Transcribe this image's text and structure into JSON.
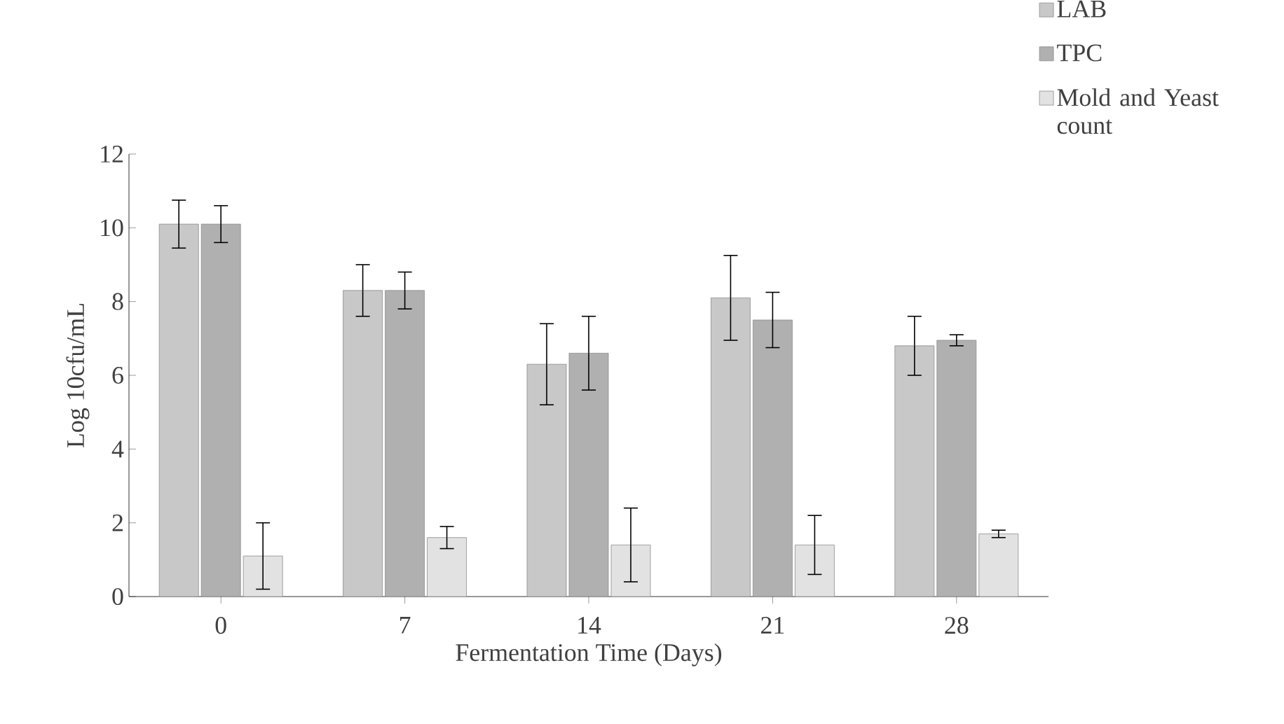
{
  "chart_data": {
    "type": "bar",
    "xlabel": "Fermentation Time (Days)",
    "ylabel": "Log 10cfu/mL",
    "categories": [
      "0",
      "7",
      "14",
      "21",
      "28"
    ],
    "series": [
      {
        "name": "LAB",
        "color": "#c8c8c8",
        "values": [
          10.1,
          8.3,
          6.3,
          8.1,
          6.8
        ],
        "errors": [
          0.65,
          0.7,
          1.1,
          1.15,
          0.8
        ]
      },
      {
        "name": "TPC",
        "color": "#b0b0b0",
        "values": [
          10.1,
          8.3,
          6.6,
          7.5,
          6.95
        ],
        "errors": [
          0.5,
          0.5,
          1.0,
          0.75,
          0.15
        ]
      },
      {
        "name": "Mold and Yeast count",
        "color": "#e2e2e2",
        "values": [
          1.1,
          1.6,
          1.4,
          1.4,
          1.7
        ],
        "errors": [
          0.9,
          0.3,
          1.0,
          0.8,
          0.1
        ]
      }
    ],
    "ylim": [
      0,
      12
    ],
    "yticks": [
      0,
      2,
      4,
      6,
      8,
      10,
      12
    ],
    "legend": "top right",
    "grid": false
  }
}
